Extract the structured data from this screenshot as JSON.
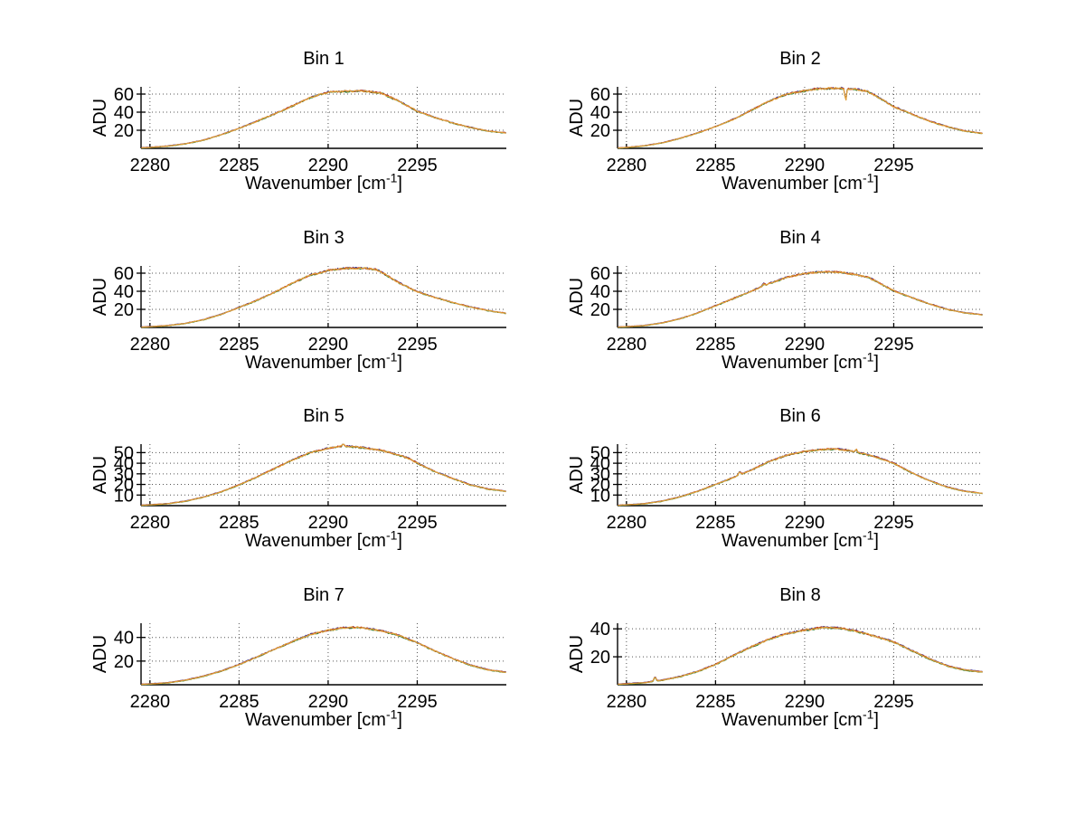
{
  "figure": {
    "background": "#ffffff"
  },
  "labels": {
    "ylabel": "ADU",
    "xlabel_main": "Wavenumber [cm",
    "xlabel_sup": "-1",
    "xlabel_close": "]"
  },
  "series_colors": [
    "#3a3090",
    "#2e7d2e",
    "#c23b22",
    "#e0a038"
  ],
  "grid_color": "#555555",
  "axis_color": "#000000",
  "chart_data": [
    {
      "type": "line",
      "title": "Bin 1",
      "ylabel": "ADU",
      "xlabel": "Wavenumber [cm-1]",
      "xlim": [
        2279.5,
        2300
      ],
      "ylim": [
        0,
        68
      ],
      "xticks": [
        2280,
        2285,
        2290,
        2295
      ],
      "yticks": [
        20,
        40,
        60
      ],
      "grid": true,
      "legend": false,
      "noise": 1.0,
      "anchors": [
        [
          2279.5,
          0.5
        ],
        [
          2280,
          1
        ],
        [
          2281,
          2.5
        ],
        [
          2282,
          5
        ],
        [
          2283,
          9
        ],
        [
          2284,
          15
        ],
        [
          2285,
          22
        ],
        [
          2286,
          30
        ],
        [
          2287,
          38
        ],
        [
          2288,
          47
        ],
        [
          2289,
          56
        ],
        [
          2289.6,
          60
        ],
        [
          2290,
          62
        ],
        [
          2291,
          63
        ],
        [
          2292,
          63.5
        ],
        [
          2293,
          61
        ],
        [
          2294,
          52
        ],
        [
          2295,
          41
        ],
        [
          2296,
          34
        ],
        [
          2297,
          28
        ],
        [
          2298,
          23
        ],
        [
          2299,
          19
        ],
        [
          2300,
          17
        ]
      ],
      "spikes": []
    },
    {
      "type": "line",
      "title": "Bin 2",
      "ylabel": "ADU",
      "xlabel": "Wavenumber [cm-1]",
      "xlim": [
        2279.5,
        2300
      ],
      "ylim": [
        0,
        68
      ],
      "xticks": [
        2280,
        2285,
        2290,
        2295
      ],
      "yticks": [
        20,
        40,
        60
      ],
      "grid": true,
      "legend": false,
      "noise": 1.0,
      "anchors": [
        [
          2279.5,
          0.4
        ],
        [
          2280,
          0.9
        ],
        [
          2281,
          2.8
        ],
        [
          2282,
          6
        ],
        [
          2283,
          11
        ],
        [
          2284,
          17
        ],
        [
          2285,
          24
        ],
        [
          2286,
          32
        ],
        [
          2287,
          42
        ],
        [
          2288,
          52
        ],
        [
          2289,
          60
        ],
        [
          2289.5,
          62
        ],
        [
          2290,
          63.5
        ],
        [
          2290.5,
          65.5
        ],
        [
          2291,
          66
        ],
        [
          2292,
          66.5
        ],
        [
          2292.7,
          65.5
        ],
        [
          2293,
          65
        ],
        [
          2293.5,
          63
        ],
        [
          2294,
          58
        ],
        [
          2294.5,
          52
        ],
        [
          2295,
          46
        ],
        [
          2296,
          38
        ],
        [
          2297,
          30
        ],
        [
          2298,
          24
        ],
        [
          2299,
          19
        ],
        [
          2300,
          16.5
        ]
      ],
      "spikes": [
        [
          2292.3,
          -14,
          0.06
        ]
      ]
    },
    {
      "type": "line",
      "title": "Bin 3",
      "ylabel": "ADU",
      "xlabel": "Wavenumber [cm-1]",
      "xlim": [
        2279.5,
        2300
      ],
      "ylim": [
        0,
        68
      ],
      "xticks": [
        2280,
        2285,
        2290,
        2295
      ],
      "yticks": [
        20,
        40,
        60
      ],
      "grid": true,
      "legend": false,
      "noise": 1.0,
      "anchors": [
        [
          2279.5,
          0.3
        ],
        [
          2280,
          0.8
        ],
        [
          2281,
          2
        ],
        [
          2282,
          4.5
        ],
        [
          2283,
          8.5
        ],
        [
          2284,
          14.5
        ],
        [
          2285,
          22
        ],
        [
          2286,
          30
        ],
        [
          2287,
          39
        ],
        [
          2288,
          49
        ],
        [
          2289,
          58
        ],
        [
          2289.7,
          61
        ],
        [
          2290,
          63
        ],
        [
          2291,
          65.5
        ],
        [
          2292,
          65.5
        ],
        [
          2292.7,
          64
        ],
        [
          2293,
          61
        ],
        [
          2294,
          49
        ],
        [
          2295,
          39.5
        ],
        [
          2296,
          33
        ],
        [
          2297,
          27.5
        ],
        [
          2298,
          22.5
        ],
        [
          2299,
          18.5
        ],
        [
          2300,
          15.5
        ]
      ],
      "spikes": []
    },
    {
      "type": "line",
      "title": "Bin 4",
      "ylabel": "ADU",
      "xlabel": "Wavenumber [cm-1]",
      "xlim": [
        2279.5,
        2300
      ],
      "ylim": [
        0,
        68
      ],
      "xticks": [
        2280,
        2285,
        2290,
        2295
      ],
      "yticks": [
        20,
        40,
        60
      ],
      "grid": true,
      "legend": false,
      "noise": 1.0,
      "anchors": [
        [
          2279.5,
          0.4
        ],
        [
          2280,
          0.8
        ],
        [
          2281,
          2
        ],
        [
          2282,
          5
        ],
        [
          2283,
          9.5
        ],
        [
          2284,
          16
        ],
        [
          2285,
          24
        ],
        [
          2286,
          32
        ],
        [
          2287,
          40
        ],
        [
          2288,
          48.5
        ],
        [
          2289,
          55.5
        ],
        [
          2290,
          59.5
        ],
        [
          2290.7,
          61
        ],
        [
          2291.5,
          61.5
        ],
        [
          2292,
          61
        ],
        [
          2293,
          58
        ],
        [
          2293.6,
          55
        ],
        [
          2294,
          51
        ],
        [
          2295,
          40.5
        ],
        [
          2296,
          33
        ],
        [
          2297,
          26
        ],
        [
          2298,
          20
        ],
        [
          2299,
          16
        ],
        [
          2300,
          14
        ]
      ],
      "spikes": [
        [
          2287.7,
          2.5,
          0.08
        ]
      ]
    },
    {
      "type": "line",
      "title": "Bin 5",
      "ylabel": "ADU",
      "xlabel": "Wavenumber [cm-1]",
      "xlim": [
        2279.5,
        2300
      ],
      "ylim": [
        0,
        58
      ],
      "xticks": [
        2280,
        2285,
        2290,
        2295
      ],
      "yticks": [
        10,
        20,
        30,
        40,
        50
      ],
      "grid": true,
      "legend": false,
      "noise": 0.85,
      "anchors": [
        [
          2279.5,
          0.3
        ],
        [
          2280,
          0.7
        ],
        [
          2281,
          1.8
        ],
        [
          2282,
          4.2
        ],
        [
          2283,
          8
        ],
        [
          2284,
          13
        ],
        [
          2285,
          19.5
        ],
        [
          2286,
          27
        ],
        [
          2287,
          35
        ],
        [
          2288,
          43
        ],
        [
          2289,
          50
        ],
        [
          2290,
          54
        ],
        [
          2290.7,
          56
        ],
        [
          2291.5,
          55.5
        ],
        [
          2292,
          54.5
        ],
        [
          2293,
          52
        ],
        [
          2294,
          47.5
        ],
        [
          2294.6,
          44
        ],
        [
          2295,
          40
        ],
        [
          2296,
          32
        ],
        [
          2297,
          25.5
        ],
        [
          2298,
          19.5
        ],
        [
          2299,
          15.5
        ],
        [
          2300,
          13.5
        ]
      ],
      "spikes": [
        [
          2290.85,
          2.5,
          0.07
        ]
      ]
    },
    {
      "type": "line",
      "title": "Bin 6",
      "ylabel": "ADU",
      "xlabel": "Wavenumber [cm-1]",
      "xlim": [
        2279.5,
        2300
      ],
      "ylim": [
        0,
        58
      ],
      "xticks": [
        2280,
        2285,
        2290,
        2295
      ],
      "yticks": [
        10,
        20,
        30,
        40,
        50
      ],
      "grid": true,
      "legend": false,
      "noise": 0.85,
      "anchors": [
        [
          2279.5,
          0.3
        ],
        [
          2280,
          0.7
        ],
        [
          2281,
          1.8
        ],
        [
          2282,
          4.2
        ],
        [
          2283,
          8.2
        ],
        [
          2284,
          13.5
        ],
        [
          2285,
          20
        ],
        [
          2286,
          26.5
        ],
        [
          2287,
          33.5
        ],
        [
          2288,
          41.5
        ],
        [
          2289,
          47.5
        ],
        [
          2290,
          51
        ],
        [
          2291,
          53
        ],
        [
          2291.7,
          53.5
        ],
        [
          2292.3,
          52.5
        ],
        [
          2293,
          50
        ],
        [
          2294,
          46
        ],
        [
          2295,
          40
        ],
        [
          2296,
          31
        ],
        [
          2297,
          23.5
        ],
        [
          2298,
          17.5
        ],
        [
          2299,
          13.5
        ],
        [
          2300,
          11.5
        ]
      ],
      "spikes": [
        [
          2286.35,
          3,
          0.08
        ],
        [
          2292.9,
          2.5,
          0.07
        ]
      ]
    },
    {
      "type": "line",
      "title": "Bin 7",
      "ylabel": "ADU",
      "xlabel": "Wavenumber [cm-1]",
      "xlim": [
        2279.5,
        2300
      ],
      "ylim": [
        0,
        52
      ],
      "xticks": [
        2280,
        2285,
        2290,
        2295
      ],
      "yticks": [
        20,
        40
      ],
      "grid": true,
      "legend": false,
      "noise": 0.85,
      "anchors": [
        [
          2279.5,
          0.3
        ],
        [
          2280,
          0.6
        ],
        [
          2281,
          1.6
        ],
        [
          2282,
          3.8
        ],
        [
          2283,
          7.2
        ],
        [
          2284,
          11.5
        ],
        [
          2285,
          17
        ],
        [
          2286,
          23.5
        ],
        [
          2287,
          30
        ],
        [
          2288,
          36.5
        ],
        [
          2289,
          42.5
        ],
        [
          2290,
          46
        ],
        [
          2290.8,
          48
        ],
        [
          2291.5,
          48.5
        ],
        [
          2292,
          48
        ],
        [
          2293,
          45.5
        ],
        [
          2294,
          41.5
        ],
        [
          2295,
          35.5
        ],
        [
          2296,
          28.5
        ],
        [
          2297,
          22
        ],
        [
          2298,
          16.5
        ],
        [
          2299,
          12.5
        ],
        [
          2300,
          10.5
        ]
      ],
      "spikes": []
    },
    {
      "type": "line",
      "title": "Bin 8",
      "ylabel": "ADU",
      "xlabel": "Wavenumber [cm-1]",
      "xlim": [
        2279.5,
        2300
      ],
      "ylim": [
        0,
        44
      ],
      "xticks": [
        2280,
        2285,
        2290,
        2295
      ],
      "yticks": [
        20,
        40
      ],
      "grid": true,
      "legend": false,
      "noise": 0.85,
      "anchors": [
        [
          2279.5,
          0.3
        ],
        [
          2280,
          0.6
        ],
        [
          2281,
          1.4
        ],
        [
          2282,
          3.2
        ],
        [
          2283,
          5.8
        ],
        [
          2284,
          9.5
        ],
        [
          2285,
          14.5
        ],
        [
          2286,
          21
        ],
        [
          2287,
          27
        ],
        [
          2288,
          32.5
        ],
        [
          2289,
          36.5
        ],
        [
          2290,
          39
        ],
        [
          2291,
          41
        ],
        [
          2292,
          40.5
        ],
        [
          2293,
          38
        ],
        [
          2294,
          34.5
        ],
        [
          2295,
          30.5
        ],
        [
          2296,
          24.5
        ],
        [
          2297,
          18.5
        ],
        [
          2298,
          13.5
        ],
        [
          2299,
          10.5
        ],
        [
          2300,
          9
        ]
      ],
      "spikes": [
        [
          2281.6,
          3,
          0.08
        ]
      ]
    }
  ]
}
